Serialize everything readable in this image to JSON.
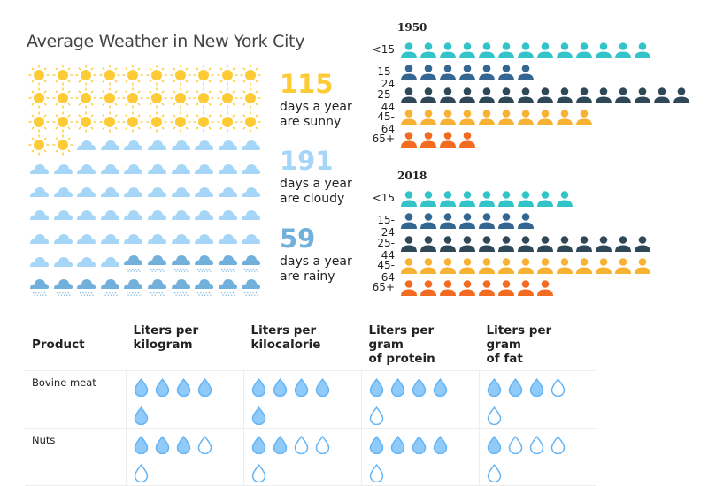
{
  "chart_data": [
    {
      "type": "table",
      "title": "Average Weather in New York City",
      "grid_total": 100,
      "categories": [
        "sunny",
        "cloudy",
        "rainy"
      ],
      "values": [
        115,
        191,
        59
      ],
      "icon_counts": [
        32,
        52,
        16
      ],
      "stats": [
        {
          "category": "sunny",
          "value": "115",
          "line1": "days a year",
          "line2": "are sunny",
          "color": "#fccb35",
          "icon": "sun-icon"
        },
        {
          "category": "cloudy",
          "value": "191",
          "line1": "days a year",
          "line2": "are cloudy",
          "color": "#a6d6f7",
          "icon": "cloud-icon"
        },
        {
          "category": "rainy",
          "value": "59",
          "line1": "days a year",
          "line2": "are rainy",
          "color": "#72b0dc",
          "icon": "rain-cloud-icon"
        }
      ]
    },
    {
      "type": "bar",
      "subtype": "pictogram",
      "categories": [
        "<15",
        "15-24",
        "25-44",
        "45-64",
        "65+"
      ],
      "colors": [
        "#33c4c9",
        "#336690",
        "#2f4858",
        "#f7b133",
        "#f26b21"
      ],
      "series": [
        {
          "name": "1950",
          "values": [
            13,
            7,
            15,
            10,
            4
          ]
        },
        {
          "name": "2018",
          "values": [
            9,
            7,
            13,
            13,
            8
          ]
        }
      ],
      "icon": "person-icon"
    },
    {
      "type": "table",
      "subtype": "rating",
      "max_rating": 5,
      "columns": [
        "Product",
        "Liters per kilogram",
        "Liters per kilocalorie",
        "Liters per gram of protein",
        "Liters per gram of fat"
      ],
      "header_lines": [
        [
          "Product"
        ],
        [
          "Liters per",
          "kilogram"
        ],
        [
          "Liters per",
          "kilocalorie"
        ],
        [
          "Liters per gram",
          "of protein"
        ],
        [
          "Liters per gram",
          "of fat"
        ]
      ],
      "rows": [
        {
          "product": "Bovine meat",
          "ratings": [
            5,
            5,
            4,
            3
          ]
        },
        {
          "product": "Nuts",
          "ratings": [
            3,
            2,
            4,
            1
          ]
        }
      ],
      "icon": "water-drop-icon",
      "drop_fill": "#90caf9",
      "drop_stroke": "#64b5f6"
    }
  ]
}
